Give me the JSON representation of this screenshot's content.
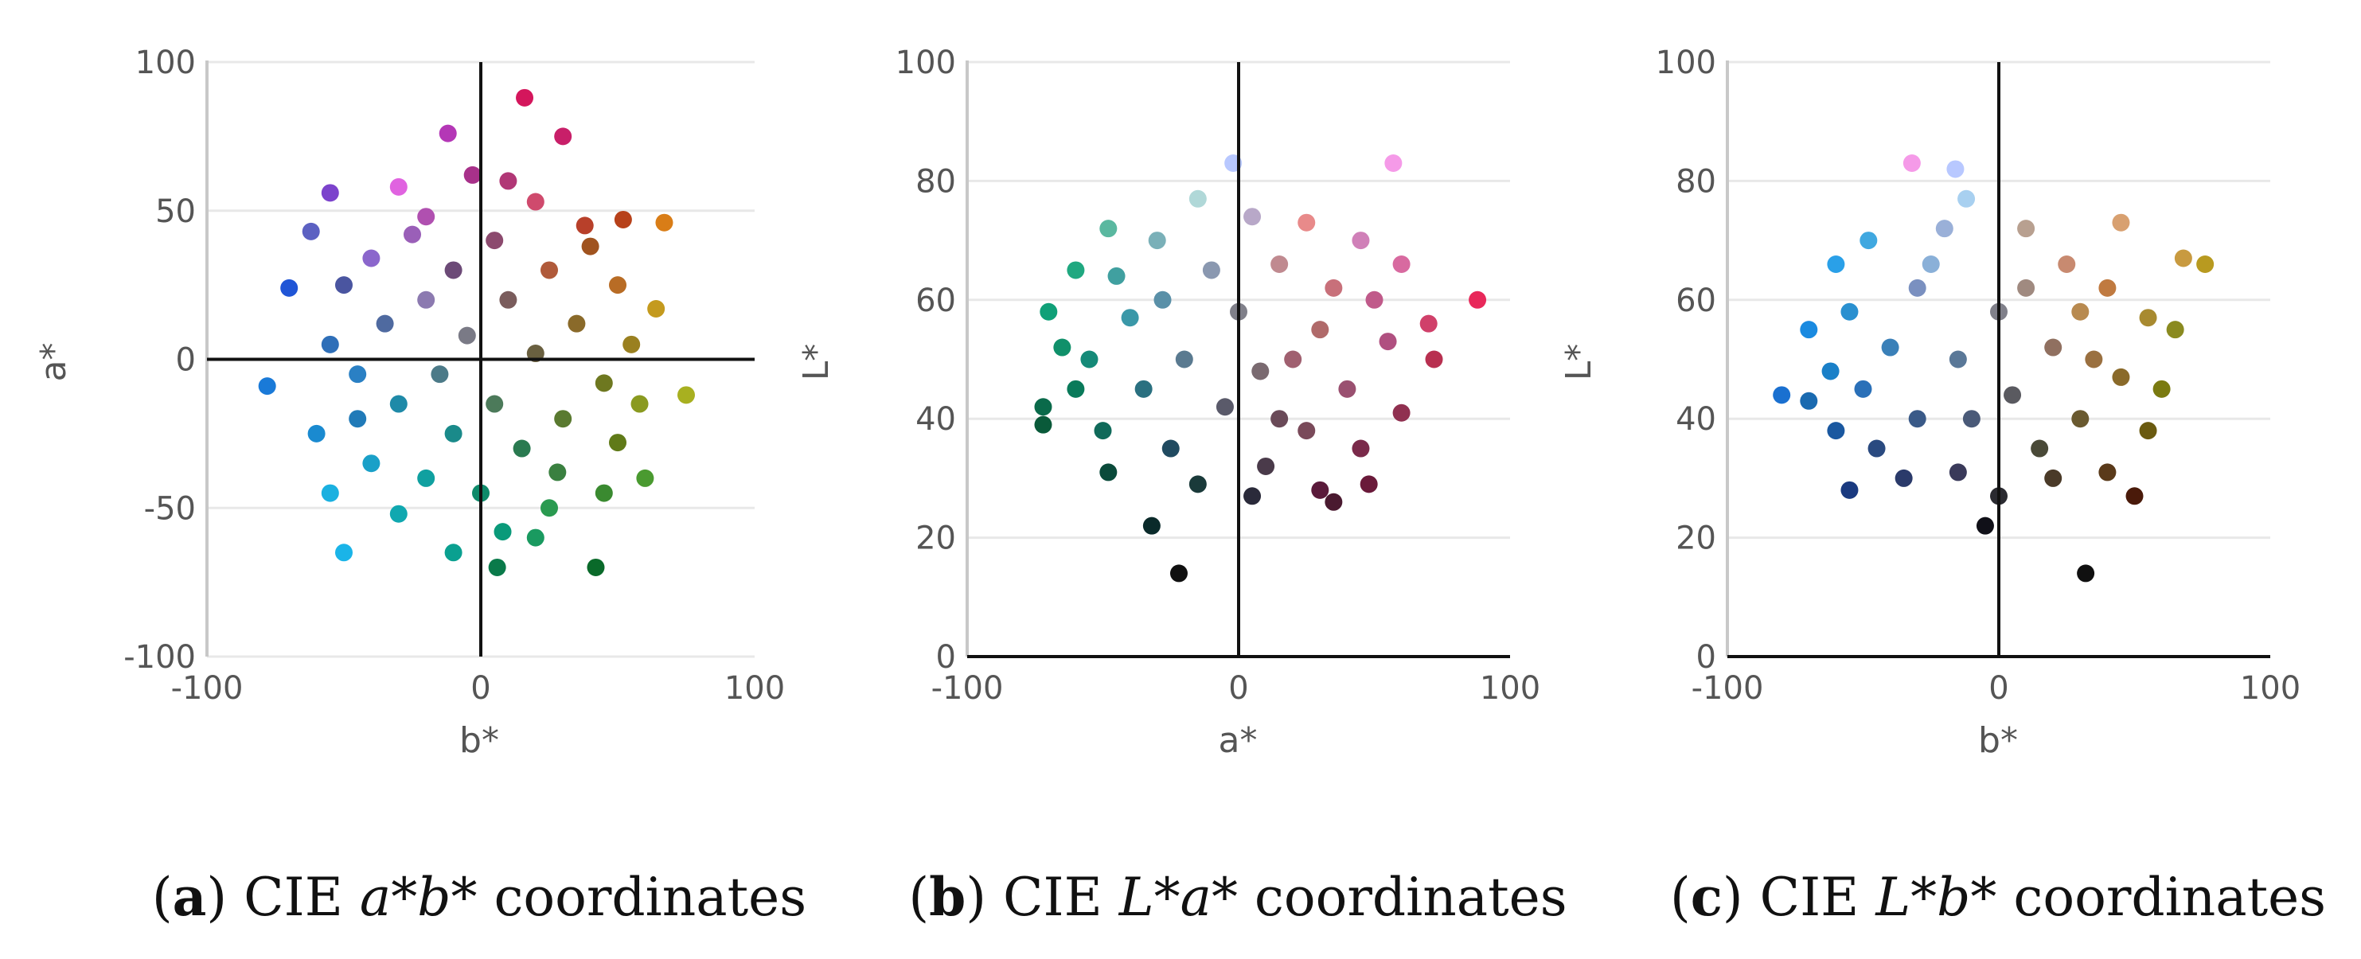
{
  "chart_data": [
    {
      "id": "a",
      "type": "scatter",
      "caption": {
        "letter": "a",
        "prefix": " CIE ",
        "italic": "a*b*",
        "suffix": " coordinates"
      },
      "xlabel": "b*",
      "ylabel": "a*",
      "xlim": [
        -100,
        100
      ],
      "ylim": [
        -100,
        100
      ],
      "xticks": [
        -100,
        0,
        100
      ],
      "yticks": [
        -100,
        -50,
        0,
        50,
        100
      ],
      "grid": true,
      "zero_lines": {
        "x": true,
        "y": true
      },
      "points": [
        {
          "x": 16,
          "y": 88,
          "c": "#d4165c"
        },
        {
          "x": -12,
          "y": 76,
          "c": "#b437b6"
        },
        {
          "x": 30,
          "y": 75,
          "c": "#c81f69"
        },
        {
          "x": -3,
          "y": 62,
          "c": "#a8318a"
        },
        {
          "x": 10,
          "y": 60,
          "c": "#b13776"
        },
        {
          "x": -55,
          "y": 56,
          "c": "#7c43cc"
        },
        {
          "x": -30,
          "y": 58,
          "c": "#e063e0"
        },
        {
          "x": 20,
          "y": 53,
          "c": "#cf4a6d"
        },
        {
          "x": 52,
          "y": 47,
          "c": "#b7411a"
        },
        {
          "x": 67,
          "y": 46,
          "c": "#d97d17"
        },
        {
          "x": -62,
          "y": 43,
          "c": "#5c61c2"
        },
        {
          "x": -25,
          "y": 42,
          "c": "#9a5fb8"
        },
        {
          "x": 5,
          "y": 40,
          "c": "#8c4a6e"
        },
        {
          "x": 40,
          "y": 38,
          "c": "#a0531f"
        },
        {
          "x": -40,
          "y": 34,
          "c": "#8b66cc"
        },
        {
          "x": -10,
          "y": 30,
          "c": "#6c4a77"
        },
        {
          "x": 25,
          "y": 30,
          "c": "#b05a3a"
        },
        {
          "x": -70,
          "y": 24,
          "c": "#2055d6"
        },
        {
          "x": -50,
          "y": 25,
          "c": "#4a55a0"
        },
        {
          "x": 50,
          "y": 25,
          "c": "#b86c25"
        },
        {
          "x": -20,
          "y": 20,
          "c": "#8c7ab0"
        },
        {
          "x": 10,
          "y": 20,
          "c": "#7a5c5c"
        },
        {
          "x": 64,
          "y": 17,
          "c": "#c49a1e"
        },
        {
          "x": -35,
          "y": 12,
          "c": "#4f6aa0"
        },
        {
          "x": 35,
          "y": 12,
          "c": "#8a6a2a"
        },
        {
          "x": -5,
          "y": 8,
          "c": "#7a7a86"
        },
        {
          "x": 55,
          "y": 5,
          "c": "#9a8020"
        },
        {
          "x": -55,
          "y": 5,
          "c": "#2f6fb8"
        },
        {
          "x": 20,
          "y": 2,
          "c": "#6a6040"
        },
        {
          "x": -78,
          "y": -9,
          "c": "#1a7ad8"
        },
        {
          "x": -45,
          "y": -5,
          "c": "#2a80c4"
        },
        {
          "x": -15,
          "y": -5,
          "c": "#4c7a88"
        },
        {
          "x": 45,
          "y": -8,
          "c": "#6e7820"
        },
        {
          "x": 75,
          "y": -12,
          "c": "#a8b020"
        },
        {
          "x": 58,
          "y": -15,
          "c": "#8a9a20"
        },
        {
          "x": -30,
          "y": -15,
          "c": "#1f8aa8"
        },
        {
          "x": 5,
          "y": -15,
          "c": "#4c7a5a"
        },
        {
          "x": 30,
          "y": -20,
          "c": "#5a7a30"
        },
        {
          "x": -60,
          "y": -25,
          "c": "#1a8ad0"
        },
        {
          "x": -10,
          "y": -25,
          "c": "#1a8a8a"
        },
        {
          "x": 50,
          "y": -28,
          "c": "#607a18"
        },
        {
          "x": 15,
          "y": -30,
          "c": "#2a7a50"
        },
        {
          "x": -40,
          "y": -35,
          "c": "#1aa0c8"
        },
        {
          "x": -20,
          "y": -40,
          "c": "#10a0a0"
        },
        {
          "x": 60,
          "y": -40,
          "c": "#4a9a30"
        },
        {
          "x": 45,
          "y": -45,
          "c": "#3a8a30"
        },
        {
          "x": 0,
          "y": -45,
          "c": "#0e8a6a"
        },
        {
          "x": -55,
          "y": -45,
          "c": "#1ab0e0"
        },
        {
          "x": 25,
          "y": -50,
          "c": "#2a9a50"
        },
        {
          "x": -30,
          "y": -52,
          "c": "#10a8b0"
        },
        {
          "x": 8,
          "y": -58,
          "c": "#0a9a7a"
        },
        {
          "x": -50,
          "y": -65,
          "c": "#1ab4e8"
        },
        {
          "x": -10,
          "y": -65,
          "c": "#0aa090"
        },
        {
          "x": 20,
          "y": -60,
          "c": "#1a9a60"
        },
        {
          "x": 6,
          "y": -70,
          "c": "#0a7a4a"
        },
        {
          "x": 42,
          "y": -70,
          "c": "#0a6a2a"
        },
        {
          "x": -20,
          "y": 48,
          "c": "#b050b0"
        },
        {
          "x": 38,
          "y": 45,
          "c": "#b8402a"
        },
        {
          "x": -45,
          "y": -20,
          "c": "#207ab8"
        },
        {
          "x": 28,
          "y": -38,
          "c": "#3a8040"
        }
      ]
    },
    {
      "id": "b",
      "type": "scatter",
      "caption": {
        "letter": "b",
        "prefix": " CIE ",
        "italic": "L*a*",
        "suffix": " coordinates"
      },
      "xlabel": "a*",
      "ylabel": "L*",
      "xlim": [
        -100,
        100
      ],
      "ylim": [
        0,
        100
      ],
      "xticks": [
        -100,
        0,
        100
      ],
      "yticks": [
        0,
        20,
        40,
        60,
        80,
        100
      ],
      "grid": true,
      "zero_lines": {
        "x": true,
        "y": false
      },
      "points": [
        {
          "x": -2,
          "y": 83,
          "c": "#b8c8ff"
        },
        {
          "x": 57,
          "y": 83,
          "c": "#f59ae8"
        },
        {
          "x": -15,
          "y": 77,
          "c": "#b0d8d8"
        },
        {
          "x": 5,
          "y": 74,
          "c": "#b8a8c8"
        },
        {
          "x": 25,
          "y": 73,
          "c": "#e88a8a"
        },
        {
          "x": -48,
          "y": 72,
          "c": "#5ab8a0"
        },
        {
          "x": -30,
          "y": 70,
          "c": "#7ab0b8"
        },
        {
          "x": 45,
          "y": 70,
          "c": "#d080b8"
        },
        {
          "x": -60,
          "y": 65,
          "c": "#20a880"
        },
        {
          "x": -10,
          "y": 65,
          "c": "#8a98b0"
        },
        {
          "x": 15,
          "y": 66,
          "c": "#c08a90"
        },
        {
          "x": 35,
          "y": 62,
          "c": "#c8707a"
        },
        {
          "x": 88,
          "y": 60,
          "c": "#e8285a"
        },
        {
          "x": -70,
          "y": 58,
          "c": "#10a078"
        },
        {
          "x": -40,
          "y": 57,
          "c": "#3a98a8"
        },
        {
          "x": 0,
          "y": 58,
          "c": "#80808a"
        },
        {
          "x": 70,
          "y": 56,
          "c": "#d0406a"
        },
        {
          "x": 55,
          "y": 53,
          "c": "#b05080"
        },
        {
          "x": -55,
          "y": 50,
          "c": "#158a78"
        },
        {
          "x": -20,
          "y": 50,
          "c": "#5a7a90"
        },
        {
          "x": 20,
          "y": 50,
          "c": "#a06070"
        },
        {
          "x": 72,
          "y": 50,
          "c": "#b83050"
        },
        {
          "x": 40,
          "y": 45,
          "c": "#9a5070"
        },
        {
          "x": -35,
          "y": 45,
          "c": "#2a7080"
        },
        {
          "x": -72,
          "y": 42,
          "c": "#0a6a4a"
        },
        {
          "x": -5,
          "y": 42,
          "c": "#5a5a6a"
        },
        {
          "x": 60,
          "y": 41,
          "c": "#903050"
        },
        {
          "x": -72,
          "y": 39,
          "c": "#0a5a3a"
        },
        {
          "x": -50,
          "y": 38,
          "c": "#106a5a"
        },
        {
          "x": 25,
          "y": 38,
          "c": "#7a4a5a"
        },
        {
          "x": -25,
          "y": 35,
          "c": "#204a60"
        },
        {
          "x": 45,
          "y": 35,
          "c": "#7a2a4a"
        },
        {
          "x": -48,
          "y": 31,
          "c": "#0a4a3a"
        },
        {
          "x": 10,
          "y": 32,
          "c": "#4a3a4a"
        },
        {
          "x": 30,
          "y": 28,
          "c": "#5a1a3a"
        },
        {
          "x": -15,
          "y": 29,
          "c": "#1a3a3a"
        },
        {
          "x": 35,
          "y": 26,
          "c": "#4a1a30"
        },
        {
          "x": 5,
          "y": 27,
          "c": "#2a2a3a"
        },
        {
          "x": -32,
          "y": 22,
          "c": "#0a2a2a"
        },
        {
          "x": -22,
          "y": 14,
          "c": "#101010"
        },
        {
          "x": 48,
          "y": 29,
          "c": "#6a1a3a"
        },
        {
          "x": -60,
          "y": 45,
          "c": "#0a7a5a"
        },
        {
          "x": 60,
          "y": 66,
          "c": "#d86aa0"
        },
        {
          "x": -45,
          "y": 64,
          "c": "#40a0a0"
        },
        {
          "x": 30,
          "y": 55,
          "c": "#b06a6a"
        },
        {
          "x": -28,
          "y": 60,
          "c": "#5a90a8"
        },
        {
          "x": 8,
          "y": 48,
          "c": "#7a6a70"
        },
        {
          "x": 50,
          "y": 60,
          "c": "#c05a8a"
        },
        {
          "x": -65,
          "y": 52,
          "c": "#10906a"
        },
        {
          "x": 15,
          "y": 40,
          "c": "#6a4a58"
        }
      ]
    },
    {
      "id": "c",
      "type": "scatter",
      "caption": {
        "letter": "c",
        "prefix": " CIE ",
        "italic": "L*b*",
        "suffix": " coordinates"
      },
      "xlabel": "b*",
      "ylabel": "L*",
      "xlim": [
        -100,
        100
      ],
      "ylim": [
        0,
        100
      ],
      "xticks": [
        -100,
        0,
        100
      ],
      "yticks": [
        0,
        20,
        40,
        60,
        80,
        100
      ],
      "grid": true,
      "zero_lines": {
        "x": true,
        "y": false
      },
      "points": [
        {
          "x": -32,
          "y": 83,
          "c": "#f59ae8"
        },
        {
          "x": -16,
          "y": 82,
          "c": "#b8c8ff"
        },
        {
          "x": -12,
          "y": 77,
          "c": "#a8d0f0"
        },
        {
          "x": 45,
          "y": 73,
          "c": "#d8a070"
        },
        {
          "x": -20,
          "y": 72,
          "c": "#9ab0d8"
        },
        {
          "x": 10,
          "y": 72,
          "c": "#b8a090"
        },
        {
          "x": -48,
          "y": 70,
          "c": "#40a8e0"
        },
        {
          "x": 68,
          "y": 67,
          "c": "#c89a40"
        },
        {
          "x": 76,
          "y": 66,
          "c": "#b89a20"
        },
        {
          "x": -60,
          "y": 66,
          "c": "#2aa0e8"
        },
        {
          "x": 25,
          "y": 66,
          "c": "#c88a70"
        },
        {
          "x": -30,
          "y": 62,
          "c": "#7a90c0"
        },
        {
          "x": 40,
          "y": 62,
          "c": "#c07a40"
        },
        {
          "x": -55,
          "y": 58,
          "c": "#2a90d0"
        },
        {
          "x": 0,
          "y": 58,
          "c": "#80808a"
        },
        {
          "x": 55,
          "y": 57,
          "c": "#a88a30"
        },
        {
          "x": -40,
          "y": 52,
          "c": "#3a80b8"
        },
        {
          "x": 20,
          "y": 52,
          "c": "#907060"
        },
        {
          "x": 65,
          "y": 55,
          "c": "#8a8a20"
        },
        {
          "x": -15,
          "y": 50,
          "c": "#5a7898"
        },
        {
          "x": -62,
          "y": 48,
          "c": "#1a80c8"
        },
        {
          "x": 45,
          "y": 47,
          "c": "#8a6a2a"
        },
        {
          "x": -80,
          "y": 44,
          "c": "#1a70d0"
        },
        {
          "x": -70,
          "y": 43,
          "c": "#1a6ab0"
        },
        {
          "x": 5,
          "y": 44,
          "c": "#5a5a60"
        },
        {
          "x": -30,
          "y": 40,
          "c": "#3a5a88"
        },
        {
          "x": 30,
          "y": 40,
          "c": "#6a5a30"
        },
        {
          "x": -60,
          "y": 38,
          "c": "#1a58a0"
        },
        {
          "x": 55,
          "y": 38,
          "c": "#6a5a10"
        },
        {
          "x": -45,
          "y": 35,
          "c": "#2a4a80"
        },
        {
          "x": 15,
          "y": 35,
          "c": "#4a4a38"
        },
        {
          "x": -15,
          "y": 31,
          "c": "#3a3a5a"
        },
        {
          "x": 40,
          "y": 31,
          "c": "#5a3a1a"
        },
        {
          "x": -55,
          "y": 28,
          "c": "#1a3a80"
        },
        {
          "x": 50,
          "y": 27,
          "c": "#4a1a0a"
        },
        {
          "x": 0,
          "y": 27,
          "c": "#2a2a30"
        },
        {
          "x": -5,
          "y": 22,
          "c": "#101018"
        },
        {
          "x": 32,
          "y": 14,
          "c": "#101010"
        },
        {
          "x": -25,
          "y": 66,
          "c": "#8ab0d8"
        },
        {
          "x": 30,
          "y": 58,
          "c": "#b88a50"
        },
        {
          "x": -50,
          "y": 45,
          "c": "#2a70b8"
        },
        {
          "x": 60,
          "y": 45,
          "c": "#7a7a10"
        },
        {
          "x": -10,
          "y": 40,
          "c": "#4a5a78"
        },
        {
          "x": 20,
          "y": 30,
          "c": "#4a3a28"
        },
        {
          "x": -35,
          "y": 30,
          "c": "#2a3a6a"
        },
        {
          "x": 35,
          "y": 50,
          "c": "#9a7040"
        },
        {
          "x": -70,
          "y": 55,
          "c": "#1a8ae0"
        },
        {
          "x": 10,
          "y": 62,
          "c": "#a08a80"
        }
      ]
    }
  ]
}
